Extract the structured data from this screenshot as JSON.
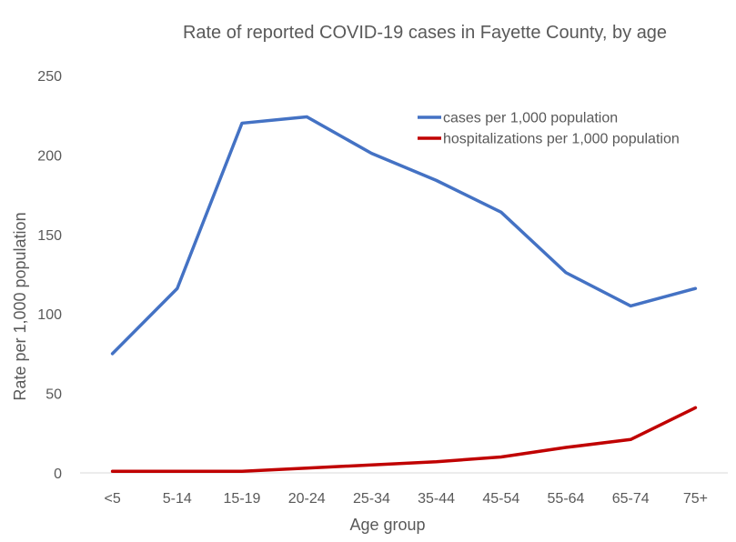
{
  "chart_data": {
    "type": "line",
    "title": "Rate of reported COVID-19 cases in Fayette County, by age",
    "xlabel": "Age group",
    "ylabel": "Rate per 1,000 population",
    "ylim": [
      0,
      250
    ],
    "yticks": [
      0,
      50,
      100,
      150,
      200,
      250
    ],
    "grid": false,
    "legend_position": "top-right",
    "categories": [
      "<5",
      "5-14",
      "15-19",
      "20-24",
      "25-34",
      "35-44",
      "45-54",
      "55-64",
      "65-74",
      "75+"
    ],
    "series": [
      {
        "name": "cases per 1,000 population",
        "color": "#4472C4",
        "values": [
          75,
          116,
          220,
          224,
          201,
          184,
          164,
          126,
          105,
          116
        ]
      },
      {
        "name": "hospitalizations per 1,000 population",
        "color": "#C00000",
        "values": [
          1,
          1,
          1,
          3,
          5,
          7,
          10,
          16,
          21,
          41
        ]
      }
    ]
  }
}
